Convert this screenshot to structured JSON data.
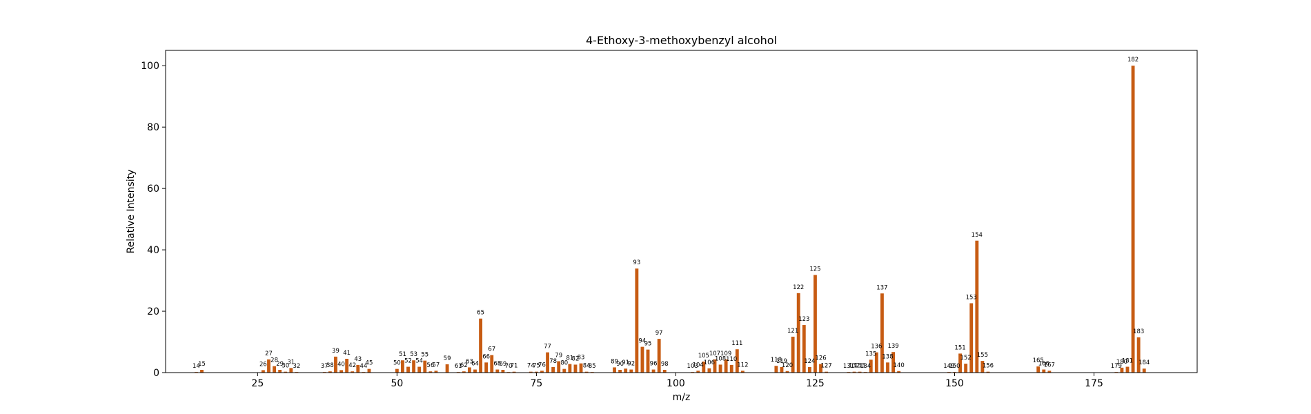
{
  "chart_data": {
    "type": "bar",
    "title": "4-Ethoxy-3-methoxybenzyl alcohol",
    "xlabel": "m/z",
    "ylabel": "Relative Intensity",
    "xlim": [
      8.5,
      193.5
    ],
    "ylim": [
      0,
      105
    ],
    "xticks": [
      25,
      50,
      75,
      100,
      125,
      150,
      175
    ],
    "yticks": [
      0,
      20,
      40,
      60,
      80,
      100
    ],
    "bar_color": "#c75b12",
    "grid": false,
    "legend": "none",
    "peaks": [
      {
        "mz": 14,
        "intensity": 0.2
      },
      {
        "mz": 15,
        "intensity": 0.9
      },
      {
        "mz": 26,
        "intensity": 0.8
      },
      {
        "mz": 27,
        "intensity": 4.3
      },
      {
        "mz": 28,
        "intensity": 2.1
      },
      {
        "mz": 29,
        "intensity": 0.9
      },
      {
        "mz": 30,
        "intensity": 0.3
      },
      {
        "mz": 31,
        "intensity": 1.5
      },
      {
        "mz": 32,
        "intensity": 0.2
      },
      {
        "mz": 37,
        "intensity": 0.2
      },
      {
        "mz": 38,
        "intensity": 0.4
      },
      {
        "mz": 39,
        "intensity": 5.2
      },
      {
        "mz": 40,
        "intensity": 0.8
      },
      {
        "mz": 41,
        "intensity": 4.5
      },
      {
        "mz": 42,
        "intensity": 0.4
      },
      {
        "mz": 43,
        "intensity": 2.5
      },
      {
        "mz": 44,
        "intensity": 0.2
      },
      {
        "mz": 45,
        "intensity": 1.2
      },
      {
        "mz": 50,
        "intensity": 1.2
      },
      {
        "mz": 51,
        "intensity": 4.0
      },
      {
        "mz": 52,
        "intensity": 1.9
      },
      {
        "mz": 53,
        "intensity": 4.0
      },
      {
        "mz": 54,
        "intensity": 1.9
      },
      {
        "mz": 55,
        "intensity": 3.9
      },
      {
        "mz": 56,
        "intensity": 0.4
      },
      {
        "mz": 57,
        "intensity": 0.6
      },
      {
        "mz": 59,
        "intensity": 2.7
      },
      {
        "mz": 61,
        "intensity": 0.2
      },
      {
        "mz": 62,
        "intensity": 0.4
      },
      {
        "mz": 63,
        "intensity": 1.7
      },
      {
        "mz": 64,
        "intensity": 1.0
      },
      {
        "mz": 65,
        "intensity": 17.6
      },
      {
        "mz": 66,
        "intensity": 3.3
      },
      {
        "mz": 67,
        "intensity": 5.7
      },
      {
        "mz": 68,
        "intensity": 1.0
      },
      {
        "mz": 69,
        "intensity": 0.9
      },
      {
        "mz": 70,
        "intensity": 0.2
      },
      {
        "mz": 71,
        "intensity": 0.3
      },
      {
        "mz": 74,
        "intensity": 0.3
      },
      {
        "mz": 75,
        "intensity": 0.3
      },
      {
        "mz": 76,
        "intensity": 0.6
      },
      {
        "mz": 77,
        "intensity": 6.6
      },
      {
        "mz": 78,
        "intensity": 1.8
      },
      {
        "mz": 79,
        "intensity": 3.7
      },
      {
        "mz": 80,
        "intensity": 1.2
      },
      {
        "mz": 81,
        "intensity": 2.8
      },
      {
        "mz": 82,
        "intensity": 2.6
      },
      {
        "mz": 83,
        "intensity": 3.0
      },
      {
        "mz": 84,
        "intensity": 0.3
      },
      {
        "mz": 85,
        "intensity": 0.2
      },
      {
        "mz": 89,
        "intensity": 1.7
      },
      {
        "mz": 90,
        "intensity": 0.9
      },
      {
        "mz": 91,
        "intensity": 1.3
      },
      {
        "mz": 92,
        "intensity": 1.0
      },
      {
        "mz": 93,
        "intensity": 33.9
      },
      {
        "mz": 94,
        "intensity": 8.4
      },
      {
        "mz": 95,
        "intensity": 7.5
      },
      {
        "mz": 96,
        "intensity": 1.0
      },
      {
        "mz": 97,
        "intensity": 11.0
      },
      {
        "mz": 98,
        "intensity": 0.9
      },
      {
        "mz": 103,
        "intensity": 0.2
      },
      {
        "mz": 104,
        "intensity": 0.6
      },
      {
        "mz": 105,
        "intensity": 3.6
      },
      {
        "mz": 106,
        "intensity": 1.4
      },
      {
        "mz": 107,
        "intensity": 4.3
      },
      {
        "mz": 108,
        "intensity": 2.6
      },
      {
        "mz": 109,
        "intensity": 4.3
      },
      {
        "mz": 110,
        "intensity": 2.5
      },
      {
        "mz": 111,
        "intensity": 7.6
      },
      {
        "mz": 112,
        "intensity": 0.6
      },
      {
        "mz": 118,
        "intensity": 2.2
      },
      {
        "mz": 119,
        "intensity": 1.8
      },
      {
        "mz": 120,
        "intensity": 0.5
      },
      {
        "mz": 121,
        "intensity": 11.7
      },
      {
        "mz": 122,
        "intensity": 25.9
      },
      {
        "mz": 123,
        "intensity": 15.5
      },
      {
        "mz": 124,
        "intensity": 1.8
      },
      {
        "mz": 125,
        "intensity": 31.8
      },
      {
        "mz": 126,
        "intensity": 2.8
      },
      {
        "mz": 127,
        "intensity": 0.3
      },
      {
        "mz": 131,
        "intensity": 0.2
      },
      {
        "mz": 132,
        "intensity": 0.3
      },
      {
        "mz": 133,
        "intensity": 0.3
      },
      {
        "mz": 134,
        "intensity": 0.2
      },
      {
        "mz": 135,
        "intensity": 4.2
      },
      {
        "mz": 136,
        "intensity": 6.6
      },
      {
        "mz": 137,
        "intensity": 25.8
      },
      {
        "mz": 138,
        "intensity": 3.3
      },
      {
        "mz": 139,
        "intensity": 6.7
      },
      {
        "mz": 140,
        "intensity": 0.5
      },
      {
        "mz": 149,
        "intensity": 0.2
      },
      {
        "mz": 150,
        "intensity": 0.2
      },
      {
        "mz": 151,
        "intensity": 6.2
      },
      {
        "mz": 152,
        "intensity": 2.9
      },
      {
        "mz": 153,
        "intensity": 22.6
      },
      {
        "mz": 154,
        "intensity": 43.0
      },
      {
        "mz": 155,
        "intensity": 3.8
      },
      {
        "mz": 156,
        "intensity": 0.3
      },
      {
        "mz": 165,
        "intensity": 2.0
      },
      {
        "mz": 166,
        "intensity": 1.0
      },
      {
        "mz": 167,
        "intensity": 0.6
      },
      {
        "mz": 179,
        "intensity": 0.2
      },
      {
        "mz": 180,
        "intensity": 1.6
      },
      {
        "mz": 181,
        "intensity": 1.9
      },
      {
        "mz": 182,
        "intensity": 100.0
      },
      {
        "mz": 183,
        "intensity": 11.5
      },
      {
        "mz": 184,
        "intensity": 1.3
      }
    ]
  }
}
